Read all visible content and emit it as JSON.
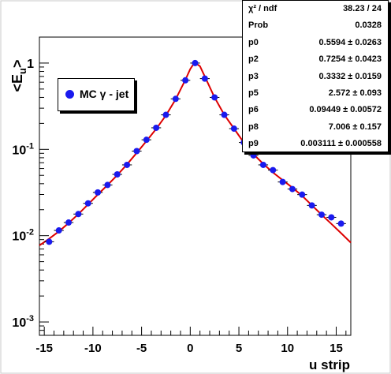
{
  "chart_data": {
    "type": "scatter",
    "title": "",
    "xlabel": "u strip",
    "ylabel": "<E_u>",
    "xlim": [
      -15.5,
      16.5
    ],
    "ylim": [
      0.0007,
      2.0
    ],
    "yscale": "log",
    "x_ticks": [
      "-15",
      "-10",
      "-5",
      "0",
      "5",
      "10",
      "15"
    ],
    "y_ticks": [
      {
        "value": 0.001,
        "base": "10",
        "exp": "-3"
      },
      {
        "value": 0.01,
        "base": "10",
        "exp": "-2"
      },
      {
        "value": 0.1,
        "base": "10",
        "exp": "-1"
      },
      {
        "value": 1,
        "base": "1",
        "exp": ""
      }
    ],
    "grid": false,
    "legend_position": "upper-left",
    "series": [
      {
        "name": "MC γ - jet",
        "color": "#1a1aee",
        "marker": "circle",
        "x": [
          -14.5,
          -13.5,
          -12.5,
          -11.5,
          -10.5,
          -9.5,
          -8.5,
          -7.5,
          -6.5,
          -5.5,
          -4.5,
          -3.5,
          -2.5,
          -1.5,
          -0.5,
          0.5,
          1.5,
          2.5,
          3.5,
          4.5,
          5.5,
          6.5,
          7.5,
          8.5,
          9.5,
          10.5,
          11.5,
          12.5,
          13.5,
          14.5,
          15.5
        ],
        "y": [
          0.0085,
          0.0115,
          0.0142,
          0.0178,
          0.0237,
          0.0317,
          0.0387,
          0.0513,
          0.0661,
          0.0955,
          0.1291,
          0.1778,
          0.2512,
          0.385,
          0.631,
          1.0,
          0.6607,
          0.4,
          0.2512,
          0.1738,
          0.1202,
          0.0851,
          0.0661,
          0.0575,
          0.0419,
          0.0347,
          0.0299,
          0.0224,
          0.0175,
          0.0163,
          0.0138
        ]
      }
    ],
    "fit": {
      "name": "fit",
      "color": "#dd0000",
      "curve_x": [
        -15.5,
        -14.5,
        -13.5,
        -12.5,
        -11.5,
        -10.5,
        -9.5,
        -8.5,
        -7.5,
        -6.5,
        -5.5,
        -4.5,
        -3.5,
        -2.5,
        -1.5,
        -0.5,
        0.0,
        0.3,
        0.6,
        1.0,
        1.5,
        2.5,
        3.5,
        4.5,
        5.5,
        6.5,
        7.5,
        8.5,
        9.5,
        10.5,
        11.5,
        12.5,
        13.5,
        14.5,
        15.5,
        16.5
      ],
      "curve_y": [
        0.0077,
        0.0092,
        0.0112,
        0.014,
        0.0178,
        0.023,
        0.03,
        0.0386,
        0.0504,
        0.067,
        0.0909,
        0.1247,
        0.1726,
        0.248,
        0.38,
        0.64,
        0.85,
        0.96,
        0.99,
        0.92,
        0.7,
        0.4,
        0.2512,
        0.1738,
        0.12,
        0.088,
        0.068,
        0.054,
        0.044,
        0.036,
        0.029,
        0.0225,
        0.0175,
        0.0137,
        0.0107,
        0.0083
      ]
    },
    "stats_box": {
      "rows": [
        {
          "name": "χ² / ndf",
          "value": "38.23 / 24"
        },
        {
          "name": "Prob",
          "value": "0.0328"
        },
        {
          "name": "p0",
          "value": "0.5594 ± 0.0263"
        },
        {
          "name": "p2",
          "value": "0.7254 ± 0.0423"
        },
        {
          "name": "p3",
          "value": "0.3332 ± 0.0159"
        },
        {
          "name": "p5",
          "value": "2.572 ± 0.093"
        },
        {
          "name": "p6",
          "value": "0.09449 ± 0.00572"
        },
        {
          "name": "p8",
          "value": "7.006 ± 0.157"
        },
        {
          "name": "p9",
          "value": "0.003111 ± 0.000558"
        }
      ]
    }
  }
}
